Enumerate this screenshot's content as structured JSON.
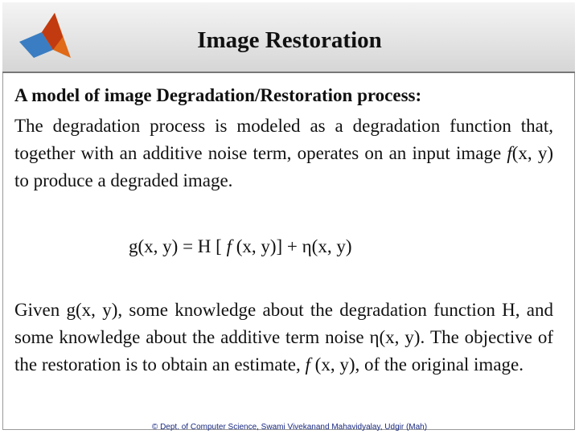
{
  "header": {
    "title": "Image Restoration"
  },
  "body": {
    "heading": "A model of image Degradation/Restoration process:",
    "paragraph1": [
      "The degradation process is modeled as a degradation function that, together with an additive noise term, operates on an input image ",
      "f",
      "(x, y) to produce a degraded image."
    ],
    "equation": [
      "g(x, y) = H [ ",
      "f",
      " (x, y)] + η(x, y)"
    ],
    "paragraph2": [
      "Given g(x, y), some knowledge about the degradation function H, and some knowledge about the additive term noise η(x, y). The objective of the restoration is to obtain an estimate, ",
      "f",
      " (x, y), of the original image."
    ]
  },
  "footer": {
    "text": "© Dept. of Computer Science, Swami Vivekanand Mahavidyalay, Udgir (Mah)"
  }
}
